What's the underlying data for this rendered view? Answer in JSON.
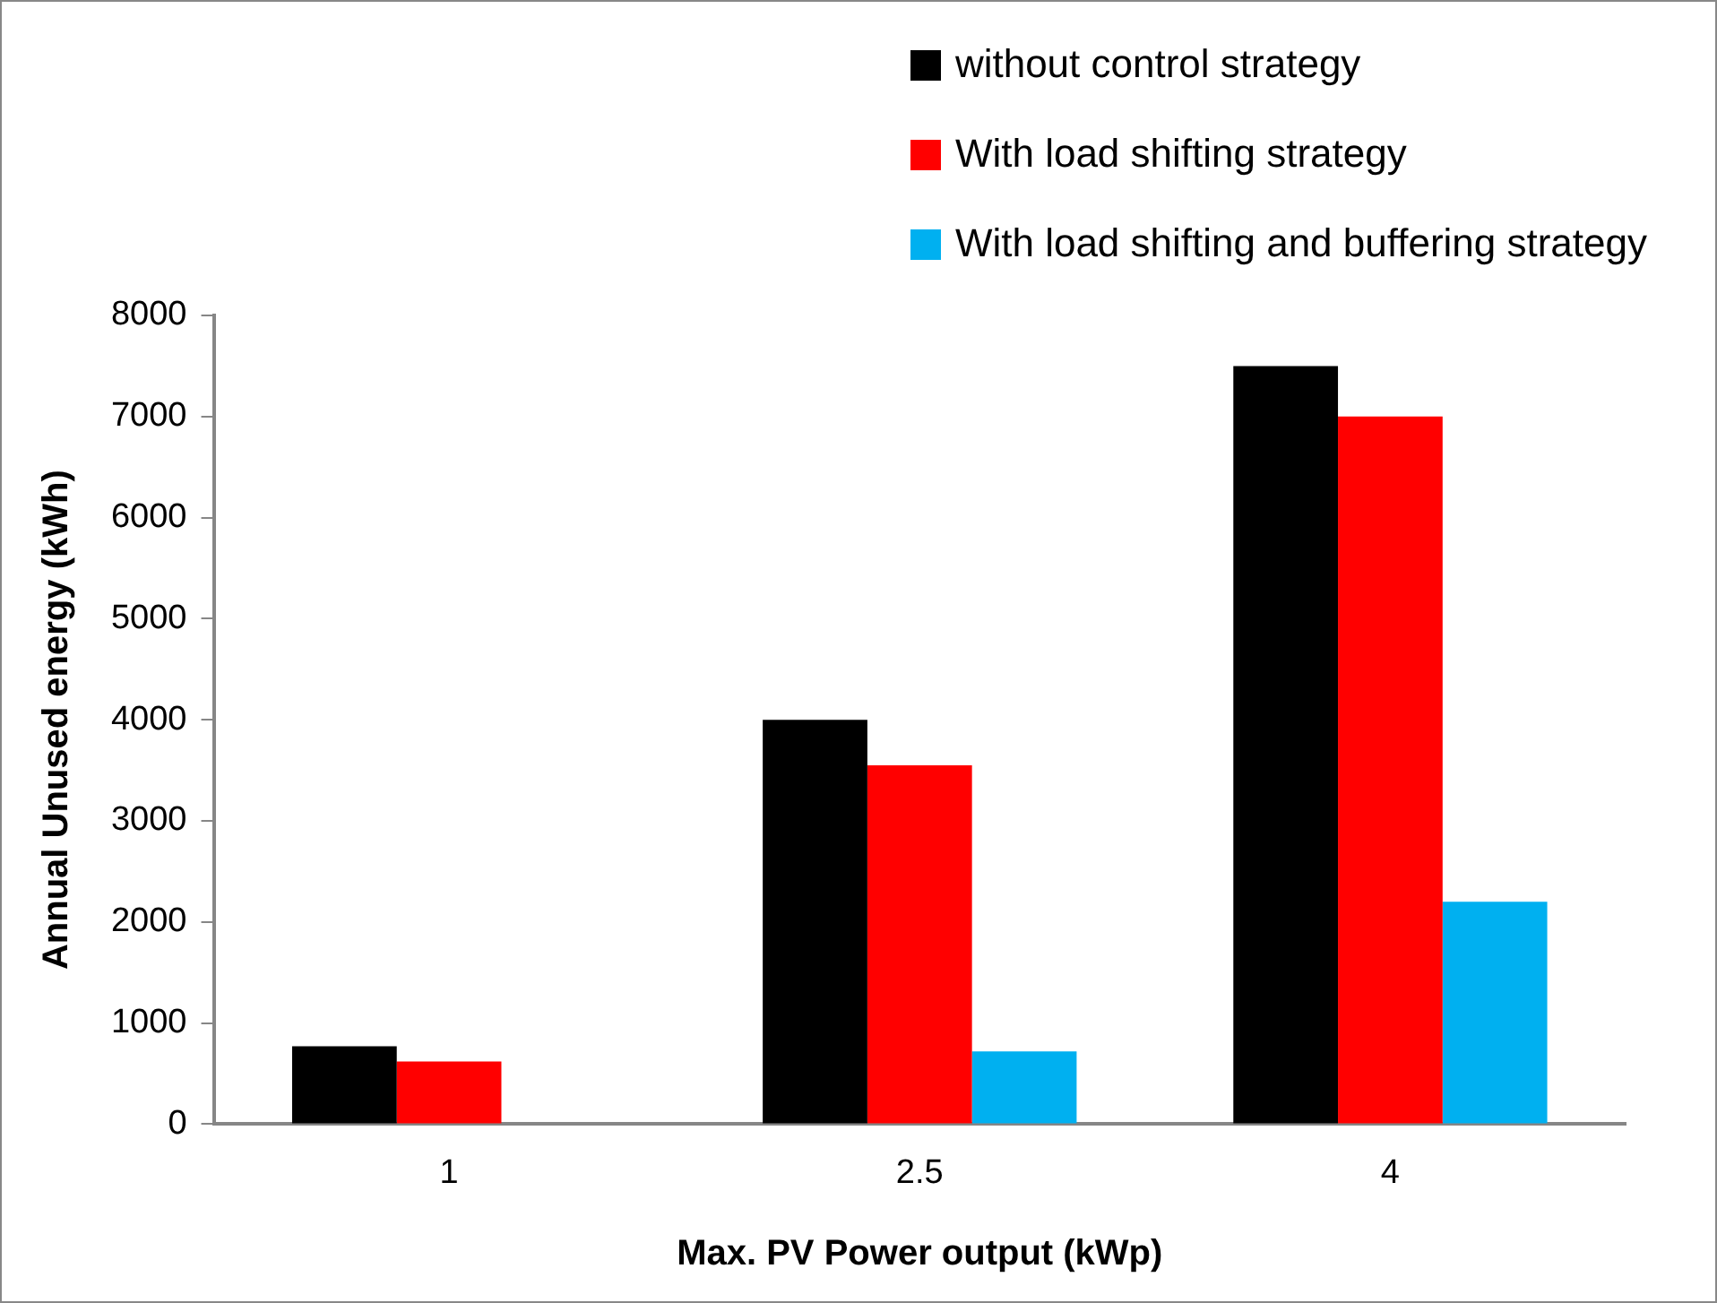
{
  "chart_data": {
    "type": "bar",
    "xlabel": "Max. PV Power output (kWp)",
    "ylabel": "Annual Unused energy (kWh)",
    "categories": [
      "1",
      "2.5",
      "4"
    ],
    "series": [
      {
        "name": "without control strategy",
        "color": "#000000",
        "values": [
          770,
          4000,
          7500
        ]
      },
      {
        "name": "With load shifting strategy",
        "color": "#ff0000",
        "values": [
          620,
          3550,
          7000
        ]
      },
      {
        "name": "With load shifting and buffering strategy",
        "color": "#00b0f0",
        "values": [
          null,
          720,
          2200
        ]
      }
    ],
    "ylim": [
      0,
      8000
    ],
    "yticks": [
      0,
      1000,
      2000,
      3000,
      4000,
      5000,
      6000,
      7000,
      8000
    ],
    "grid": false,
    "legend": "top right"
  }
}
